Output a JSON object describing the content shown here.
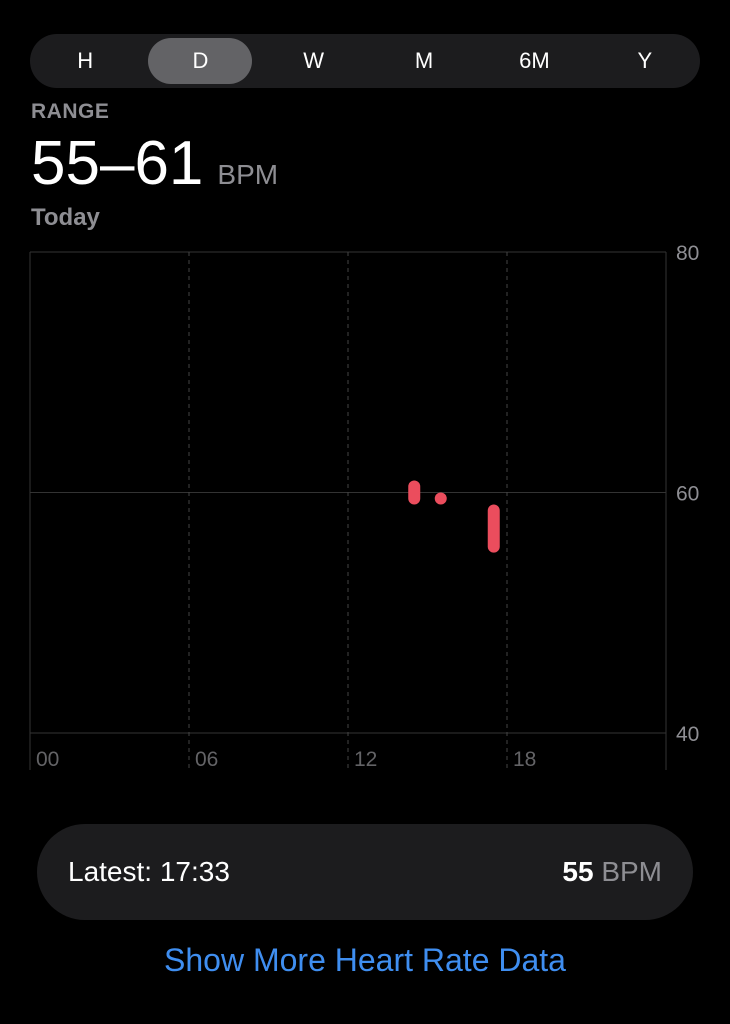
{
  "segments": [
    "H",
    "D",
    "W",
    "M",
    "6M",
    "Y"
  ],
  "selected_segment": "D",
  "summary": {
    "label": "RANGE",
    "value": "55–61",
    "unit": "BPM",
    "period": "Today"
  },
  "chart_data": {
    "type": "bar",
    "subtype": "range",
    "x_ticks": [
      "00",
      "06",
      "12",
      "18"
    ],
    "x_range_hours": [
      0,
      24
    ],
    "y_ticks": [
      "80",
      "60",
      "40"
    ],
    "ylim": [
      40,
      80
    ],
    "bar_color": "#eb4d5d",
    "bars": [
      {
        "hour": 14.5,
        "min": 59,
        "max": 61
      },
      {
        "hour": 15.5,
        "min": 59,
        "max": 60
      },
      {
        "hour": 17.5,
        "min": 55,
        "max": 59
      }
    ]
  },
  "latest": {
    "label": "Latest: 17:33",
    "value": "55",
    "unit": "BPM"
  },
  "link": "Show More Heart Rate Data"
}
